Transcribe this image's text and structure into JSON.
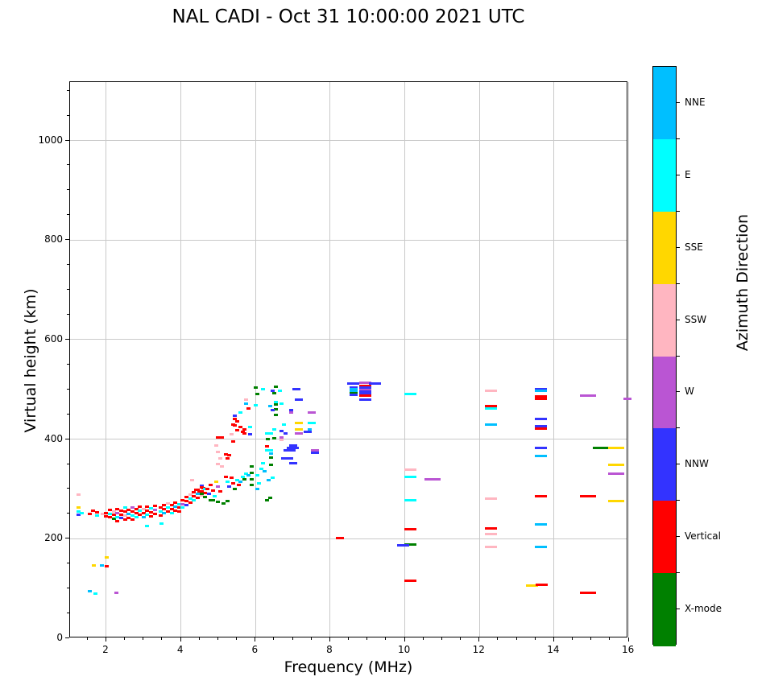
{
  "title": "NAL CADI - Oct 31 10:00:00 2021 UTC",
  "chart_data": {
    "type": "scatter",
    "title": "NAL CADI - Oct 31 10:00:00 2021 UTC",
    "xlabel": "Frequency (MHz)",
    "ylabel": "Virtual height (km)",
    "xlim": [
      1.03,
      16
    ],
    "ylim": [
      0,
      1117
    ],
    "x_ticks": [
      2,
      4,
      6,
      8,
      10,
      12,
      14,
      16
    ],
    "x_minor_step": 0.5,
    "y_ticks": [
      0,
      200,
      400,
      600,
      800,
      1000
    ],
    "y_minor_step": 50,
    "grid": true,
    "marker": "small horizontal tile ~0.1 MHz x 5 km",
    "colorbar": {
      "label": "Azimuth Direction",
      "entries_top_to_bottom": [
        {
          "label": "NNE",
          "color": "#00BFFF"
        },
        {
          "label": "E",
          "color": "#00FFFF"
        },
        {
          "label": "SSE",
          "color": "#FFD700"
        },
        {
          "label": "SSW",
          "color": "#FFB6C1"
        },
        {
          "label": "W",
          "color": "#BA55D3"
        },
        {
          "label": "NNW",
          "color": "#3333FF"
        },
        {
          "label": "Vertical",
          "color": "#FF0000"
        },
        {
          "label": "X-mode",
          "color": "#008000"
        }
      ]
    },
    "points_format": [
      "freq_MHz",
      "virtual_height_km",
      "azimuth_direction",
      "width_tiles_optional"
    ],
    "points": [
      [
        1.25,
        288,
        "SSW"
      ],
      [
        1.25,
        262,
        "SSE"
      ],
      [
        1.25,
        255,
        "E"
      ],
      [
        1.25,
        248,
        "NNW"
      ],
      [
        1.35,
        252,
        "E"
      ],
      [
        1.55,
        250,
        "V"
      ],
      [
        1.65,
        257,
        "V"
      ],
      [
        1.75,
        253,
        "V"
      ],
      [
        1.75,
        247,
        "E"
      ],
      [
        1.9,
        250,
        "SSW"
      ],
      [
        2.0,
        252,
        "V"
      ],
      [
        2.0,
        245,
        "V"
      ],
      [
        2.1,
        258,
        "V"
      ],
      [
        2.1,
        250,
        "E"
      ],
      [
        2.1,
        243,
        "V"
      ],
      [
        2.2,
        255,
        "SSW"
      ],
      [
        2.2,
        248,
        "V"
      ],
      [
        2.2,
        240,
        "X"
      ],
      [
        2.3,
        260,
        "V"
      ],
      [
        2.3,
        252,
        "W"
      ],
      [
        2.3,
        244,
        "E"
      ],
      [
        2.3,
        236,
        "V"
      ],
      [
        2.4,
        256,
        "V"
      ],
      [
        2.4,
        249,
        "V"
      ],
      [
        2.4,
        241,
        "NNW"
      ],
      [
        2.5,
        262,
        "E"
      ],
      [
        2.5,
        254,
        "V"
      ],
      [
        2.5,
        246,
        "SSW"
      ],
      [
        2.5,
        238,
        "V"
      ],
      [
        2.6,
        258,
        "V"
      ],
      [
        2.6,
        250,
        "NNE"
      ],
      [
        2.6,
        242,
        "V"
      ],
      [
        2.7,
        263,
        "W"
      ],
      [
        2.7,
        255,
        "V"
      ],
      [
        2.7,
        247,
        "E"
      ],
      [
        2.7,
        239,
        "V"
      ],
      [
        2.8,
        259,
        "V"
      ],
      [
        2.8,
        251,
        "V"
      ],
      [
        2.8,
        243,
        "E"
      ],
      [
        2.9,
        264,
        "V"
      ],
      [
        2.9,
        256,
        "E"
      ],
      [
        2.9,
        248,
        "V"
      ],
      [
        3.0,
        260,
        "SSW"
      ],
      [
        3.0,
        252,
        "V"
      ],
      [
        3.0,
        244,
        "NNE"
      ],
      [
        3.1,
        265,
        "V"
      ],
      [
        3.1,
        257,
        "V"
      ],
      [
        3.1,
        249,
        "E"
      ],
      [
        3.1,
        225,
        "E"
      ],
      [
        3.2,
        261,
        "E"
      ],
      [
        3.2,
        253,
        "V"
      ],
      [
        3.2,
        245,
        "V"
      ],
      [
        3.3,
        266,
        "V"
      ],
      [
        3.3,
        258,
        "W"
      ],
      [
        3.3,
        250,
        "V"
      ],
      [
        3.45,
        262,
        "V"
      ],
      [
        3.45,
        254,
        "E"
      ],
      [
        3.45,
        246,
        "V"
      ],
      [
        3.47,
        230,
        "E"
      ],
      [
        3.55,
        267,
        "V"
      ],
      [
        3.55,
        259,
        "V"
      ],
      [
        3.55,
        251,
        "NNE"
      ],
      [
        3.65,
        271,
        "SSW"
      ],
      [
        3.65,
        263,
        "E"
      ],
      [
        3.65,
        255,
        "V"
      ],
      [
        3.75,
        268,
        "V"
      ],
      [
        3.75,
        260,
        "V"
      ],
      [
        3.75,
        252,
        "E"
      ],
      [
        3.85,
        273,
        "V"
      ],
      [
        3.85,
        265,
        "NNE"
      ],
      [
        3.85,
        257,
        "V"
      ],
      [
        3.95,
        270,
        "E"
      ],
      [
        3.95,
        262,
        "V"
      ],
      [
        3.95,
        254,
        "V"
      ],
      [
        4.05,
        278,
        "V"
      ],
      [
        4.05,
        270,
        "W"
      ],
      [
        4.05,
        262,
        "E"
      ],
      [
        4.15,
        283,
        "V"
      ],
      [
        4.15,
        275,
        "V"
      ],
      [
        4.15,
        267,
        "NNW"
      ],
      [
        4.25,
        288,
        "SSW"
      ],
      [
        4.25,
        280,
        "E"
      ],
      [
        4.25,
        272,
        "V"
      ],
      [
        4.3,
        318,
        "SSW"
      ],
      [
        4.35,
        293,
        "V"
      ],
      [
        4.35,
        285,
        "V"
      ],
      [
        4.35,
        277,
        "E"
      ],
      [
        4.4,
        298,
        "V"
      ],
      [
        4.45,
        298,
        "V"
      ],
      [
        4.45,
        290,
        "NNE"
      ],
      [
        4.45,
        282,
        "V"
      ],
      [
        4.5,
        295,
        "V"
      ],
      [
        4.55,
        307,
        "NNW"
      ],
      [
        4.55,
        303,
        "V"
      ],
      [
        4.55,
        295,
        "V"
      ],
      [
        4.55,
        287,
        "SSW"
      ],
      [
        4.6,
        301,
        "V"
      ],
      [
        4.65,
        300,
        "E"
      ],
      [
        4.65,
        292,
        "V"
      ],
      [
        4.55,
        290,
        "X"
      ],
      [
        4.65,
        283,
        "X"
      ],
      [
        4.8,
        277,
        "X"
      ],
      [
        4.85,
        278,
        "X"
      ],
      [
        5.0,
        274,
        "X"
      ],
      [
        5.15,
        271,
        "X"
      ],
      [
        5.25,
        276,
        "X"
      ],
      [
        4.7,
        300,
        "V"
      ],
      [
        4.75,
        290,
        "NNW"
      ],
      [
        4.8,
        308,
        "V"
      ],
      [
        4.85,
        296,
        "V"
      ],
      [
        4.9,
        285,
        "E"
      ],
      [
        4.94,
        314,
        "SSE"
      ],
      [
        5.0,
        305,
        "W"
      ],
      [
        5.05,
        295,
        "V"
      ],
      [
        5.2,
        325,
        "V"
      ],
      [
        5.25,
        315,
        "E"
      ],
      [
        5.3,
        305,
        "NNW"
      ],
      [
        5.35,
        322,
        "V"
      ],
      [
        5.4,
        312,
        "V"
      ],
      [
        5.45,
        300,
        "X"
      ],
      [
        5.5,
        318,
        "E"
      ],
      [
        5.55,
        308,
        "V"
      ],
      [
        5.6,
        315,
        "NNE"
      ],
      [
        5.65,
        325,
        "E"
      ],
      [
        5.7,
        320,
        "X"
      ],
      [
        5.75,
        330,
        "E"
      ],
      [
        5.8,
        328,
        "NNE"
      ],
      [
        5.9,
        345,
        "X"
      ],
      [
        5.9,
        333,
        "X"
      ],
      [
        5.9,
        320,
        "X"
      ],
      [
        5.9,
        308,
        "X"
      ],
      [
        6.05,
        300,
        "NNE"
      ],
      [
        6.1,
        312,
        "E"
      ],
      [
        6.05,
        327,
        "E"
      ],
      [
        6.15,
        340,
        "E"
      ],
      [
        6.2,
        352,
        "E"
      ],
      [
        6.25,
        335,
        "NNE"
      ],
      [
        6.3,
        278,
        "X"
      ],
      [
        6.4,
        282,
        "X"
      ],
      [
        6.45,
        322,
        "E"
      ],
      [
        6.35,
        318,
        "NNE"
      ],
      [
        4.95,
        388,
        "SSW"
      ],
      [
        5.0,
        375,
        "SSW"
      ],
      [
        5.05,
        362,
        "SSW"
      ],
      [
        5.0,
        350,
        "SSW"
      ],
      [
        5.1,
        345,
        "SSW"
      ],
      [
        5.2,
        370,
        "V"
      ],
      [
        5.25,
        362,
        "V"
      ],
      [
        5.3,
        368,
        "V"
      ],
      [
        5.35,
        410,
        "SSW"
      ],
      [
        5.4,
        396,
        "V"
      ],
      [
        5.45,
        440,
        "V"
      ],
      [
        5.5,
        436,
        "V"
      ],
      [
        5.45,
        428,
        "V"
      ],
      [
        5.6,
        425,
        "E"
      ],
      [
        5.4,
        430,
        "V"
      ],
      [
        5.5,
        418,
        "V"
      ],
      [
        5.0,
        404,
        "V"
      ],
      [
        5.1,
        404,
        "V"
      ],
      [
        5.6,
        424,
        "V"
      ],
      [
        5.7,
        420,
        "V"
      ],
      [
        5.65,
        415,
        "V"
      ],
      [
        5.75,
        480,
        "SSW"
      ],
      [
        5.75,
        472,
        "NNE"
      ],
      [
        5.8,
        461,
        "V"
      ],
      [
        5.6,
        453,
        "E"
      ],
      [
        5.45,
        447,
        "NNW"
      ],
      [
        5.85,
        424,
        "E"
      ],
      [
        5.7,
        412,
        "V"
      ],
      [
        5.85,
        410,
        "NNW"
      ],
      [
        6.55,
        505,
        "X"
      ],
      [
        6.5,
        492,
        "X"
      ],
      [
        6.65,
        497,
        "E"
      ],
      [
        7.1,
        500,
        "NNW",
        2
      ],
      [
        7.15,
        479,
        "NNW",
        2
      ],
      [
        6.55,
        475,
        "E"
      ],
      [
        6.7,
        472,
        "E"
      ],
      [
        6.4,
        466,
        "NNE"
      ],
      [
        6.55,
        470,
        "X"
      ],
      [
        6.55,
        460,
        "X"
      ],
      [
        6.55,
        448,
        "X"
      ],
      [
        6.95,
        459,
        "NNW"
      ],
      [
        6.95,
        453,
        "W"
      ],
      [
        7.5,
        453,
        "W",
        2
      ],
      [
        6.75,
        430,
        "E"
      ],
      [
        7.15,
        433,
        "SSE",
        2
      ],
      [
        7.5,
        432,
        "E",
        2
      ],
      [
        6.5,
        420,
        "E"
      ],
      [
        6.7,
        417,
        "NNW"
      ],
      [
        7.15,
        420,
        "SSE",
        2
      ],
      [
        7.45,
        420,
        "NNE"
      ],
      [
        6.35,
        412,
        "E",
        2
      ],
      [
        6.8,
        411,
        "NNW"
      ],
      [
        7.15,
        411,
        "W",
        2
      ],
      [
        7.45,
        414,
        "NNW"
      ],
      [
        6.5,
        402,
        "X"
      ],
      [
        6.32,
        400,
        "X"
      ],
      [
        6.7,
        404,
        "W"
      ],
      [
        6.7,
        398,
        "SSW"
      ],
      [
        6.3,
        385,
        "V"
      ],
      [
        7.0,
        388,
        "NNW",
        2
      ],
      [
        7.1,
        382,
        "NNW"
      ],
      [
        6.3,
        378,
        "E"
      ],
      [
        6.0,
        503,
        "X"
      ],
      [
        6.2,
        500,
        "E"
      ],
      [
        6.45,
        498,
        "NNW"
      ],
      [
        6.05,
        490,
        "X"
      ],
      [
        6.0,
        468,
        "E"
      ],
      [
        6.45,
        459,
        "NNW"
      ],
      [
        7.35,
        415,
        "NNW"
      ],
      [
        6.9,
        378,
        "NNW",
        3
      ],
      [
        6.95,
        383,
        "NNW",
        2
      ],
      [
        7.6,
        378,
        "W",
        2
      ],
      [
        7.6,
        373,
        "NNW",
        2
      ],
      [
        6.85,
        362,
        "NNW",
        3
      ],
      [
        7.0,
        352,
        "NNW",
        2
      ],
      [
        6.42,
        378,
        "E"
      ],
      [
        6.42,
        371,
        "NNE"
      ],
      [
        6.42,
        363,
        "X"
      ],
      [
        6.42,
        349,
        "X"
      ],
      [
        8.62,
        511,
        "NNW",
        3
      ],
      [
        8.95,
        513,
        "W",
        3
      ],
      [
        9.2,
        512,
        "NNW",
        3
      ],
      [
        8.95,
        507,
        "V",
        3
      ],
      [
        8.62,
        503,
        "NNW",
        2
      ],
      [
        8.95,
        503,
        "NNW",
        3
      ],
      [
        8.62,
        500,
        "NNE",
        2
      ],
      [
        8.95,
        499,
        "W",
        3
      ],
      [
        8.62,
        496,
        "NNE",
        2
      ],
      [
        8.95,
        495,
        "NNW",
        3
      ],
      [
        8.62,
        493,
        "X",
        2
      ],
      [
        8.95,
        491,
        "NNW",
        3
      ],
      [
        8.62,
        489,
        "NNW",
        2
      ],
      [
        8.95,
        487,
        "V",
        3
      ],
      [
        8.95,
        479,
        "NNW",
        3
      ],
      [
        8.25,
        202,
        "V",
        2
      ],
      [
        10.15,
        491,
        "E",
        3
      ],
      [
        10.15,
        338,
        "SSW",
        3
      ],
      [
        10.15,
        324,
        "E",
        3
      ],
      [
        10.15,
        278,
        "E",
        3
      ],
      [
        10.15,
        219,
        "V",
        3
      ],
      [
        10.15,
        189,
        "X",
        3
      ],
      [
        9.95,
        186,
        "NNW",
        3
      ],
      [
        10.15,
        115,
        "V",
        3
      ],
      [
        10.75,
        320,
        "W",
        4
      ],
      [
        12.3,
        497,
        "SSW",
        3
      ],
      [
        12.3,
        466,
        "V",
        3
      ],
      [
        12.3,
        461,
        "E",
        3
      ],
      [
        12.3,
        429,
        "NNE",
        3
      ],
      [
        12.3,
        280,
        "SSW",
        3
      ],
      [
        12.3,
        220,
        "V",
        3
      ],
      [
        12.3,
        209,
        "SSW",
        3
      ],
      [
        12.3,
        183,
        "SSW",
        3
      ],
      [
        13.65,
        501,
        "NNW",
        3
      ],
      [
        13.65,
        497,
        "NNE",
        3
      ],
      [
        13.65,
        486,
        "V",
        3
      ],
      [
        13.65,
        481,
        "V",
        3
      ],
      [
        13.65,
        440,
        "NNW",
        3
      ],
      [
        13.65,
        426,
        "NNW",
        3
      ],
      [
        13.65,
        421,
        "V",
        3
      ],
      [
        13.65,
        382,
        "NNW",
        3
      ],
      [
        13.65,
        366,
        "NNE",
        3
      ],
      [
        13.65,
        286,
        "V",
        3
      ],
      [
        13.65,
        229,
        "NNE",
        3
      ],
      [
        13.65,
        184,
        "NNE",
        3
      ],
      [
        13.4,
        106,
        "SSE",
        3
      ],
      [
        13.67,
        107,
        "V",
        3
      ],
      [
        14.9,
        488,
        "W",
        4
      ],
      [
        15.97,
        481,
        "W",
        2
      ],
      [
        15.25,
        383,
        "X",
        4
      ],
      [
        15.67,
        383,
        "SSE",
        4
      ],
      [
        15.67,
        348,
        "SSE",
        4
      ],
      [
        15.67,
        330,
        "W",
        4
      ],
      [
        14.9,
        286,
        "V",
        4
      ],
      [
        15.67,
        275,
        "SSE",
        4
      ],
      [
        14.9,
        91,
        "V",
        4
      ],
      [
        2.02,
        162,
        "SSE"
      ],
      [
        1.66,
        146,
        "SSE"
      ],
      [
        1.88,
        146,
        "NNE"
      ],
      [
        2.02,
        144,
        "V"
      ],
      [
        1.55,
        95,
        "NNE"
      ],
      [
        1.7,
        89,
        "E"
      ],
      [
        2.28,
        92,
        "W"
      ]
    ],
    "direction_color_map": {
      "NNE": "#00BFFF",
      "E": "#00FFFF",
      "SSE": "#FFD700",
      "SSW": "#FFB6C1",
      "W": "#BA55D3",
      "NNW": "#3333FF",
      "V": "#FF0000",
      "X": "#008000"
    },
    "direction_full_names": {
      "NNE": "NNE",
      "E": "E",
      "SSE": "SSE",
      "SSW": "SSW",
      "W": "W",
      "NNW": "NNW",
      "V": "Vertical",
      "X": "X-mode"
    },
    "legend_position": "right colorbar"
  }
}
